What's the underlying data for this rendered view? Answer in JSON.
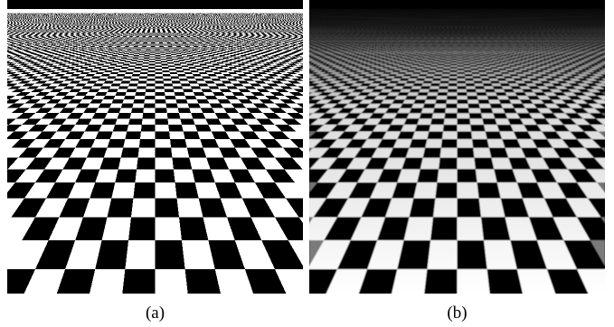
{
  "figure": {
    "panels": [
      {
        "id": "a",
        "caption": "(a)",
        "filtering": "aliased"
      },
      {
        "id": "b",
        "caption": "(b)",
        "filtering": "antialiased"
      }
    ],
    "colors": {
      "light_square": "#ffffff",
      "dark_square": "#000000",
      "sky": "#000000",
      "caption_text": "#000000"
    }
  }
}
